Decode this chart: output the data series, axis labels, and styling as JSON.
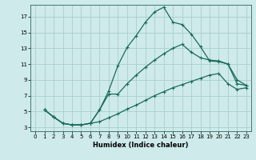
{
  "xlabel": "Humidex (Indice chaleur)",
  "xlim": [
    -0.5,
    23.5
  ],
  "ylim": [
    2.5,
    18.5
  ],
  "xticks": [
    0,
    1,
    2,
    3,
    4,
    5,
    6,
    7,
    8,
    9,
    10,
    11,
    12,
    13,
    14,
    15,
    16,
    17,
    18,
    19,
    20,
    21,
    22,
    23
  ],
  "yticks": [
    3,
    5,
    7,
    9,
    11,
    13,
    15,
    17
  ],
  "bg_color": "#ceeaea",
  "grid_color": "#aacece",
  "line_color": "#1a6b5a",
  "line1_x": [
    1,
    2,
    3,
    4,
    5,
    6,
    7,
    8,
    9,
    10,
    11,
    12,
    13,
    14,
    15,
    16,
    17,
    18,
    19,
    20,
    21,
    22,
    23
  ],
  "line1_y": [
    5.2,
    4.3,
    3.5,
    3.3,
    3.3,
    3.5,
    5.2,
    7.6,
    10.8,
    13.1,
    14.6,
    16.3,
    17.6,
    18.2,
    16.3,
    16.0,
    14.8,
    13.2,
    11.4,
    11.3,
    11.0,
    8.5,
    8.3
  ],
  "line2_x": [
    1,
    2,
    3,
    4,
    5,
    6,
    7,
    8,
    9,
    10,
    11,
    12,
    13,
    14,
    15,
    16,
    17,
    18,
    19,
    20,
    21,
    22,
    23
  ],
  "line2_y": [
    5.2,
    4.3,
    3.5,
    3.3,
    3.3,
    3.5,
    5.2,
    7.2,
    7.2,
    8.5,
    9.6,
    10.6,
    11.5,
    12.3,
    13.0,
    13.5,
    12.5,
    11.8,
    11.5,
    11.4,
    11.0,
    9.0,
    8.3
  ],
  "line3_x": [
    1,
    2,
    3,
    4,
    5,
    6,
    7,
    8,
    9,
    10,
    11,
    12,
    13,
    14,
    15,
    16,
    17,
    18,
    19,
    20,
    21,
    22,
    23
  ],
  "line3_y": [
    5.2,
    4.3,
    3.5,
    3.3,
    3.3,
    3.5,
    3.7,
    4.2,
    4.7,
    5.3,
    5.8,
    6.4,
    7.0,
    7.5,
    8.0,
    8.4,
    8.8,
    9.2,
    9.6,
    9.8,
    8.5,
    7.8,
    8.0
  ]
}
